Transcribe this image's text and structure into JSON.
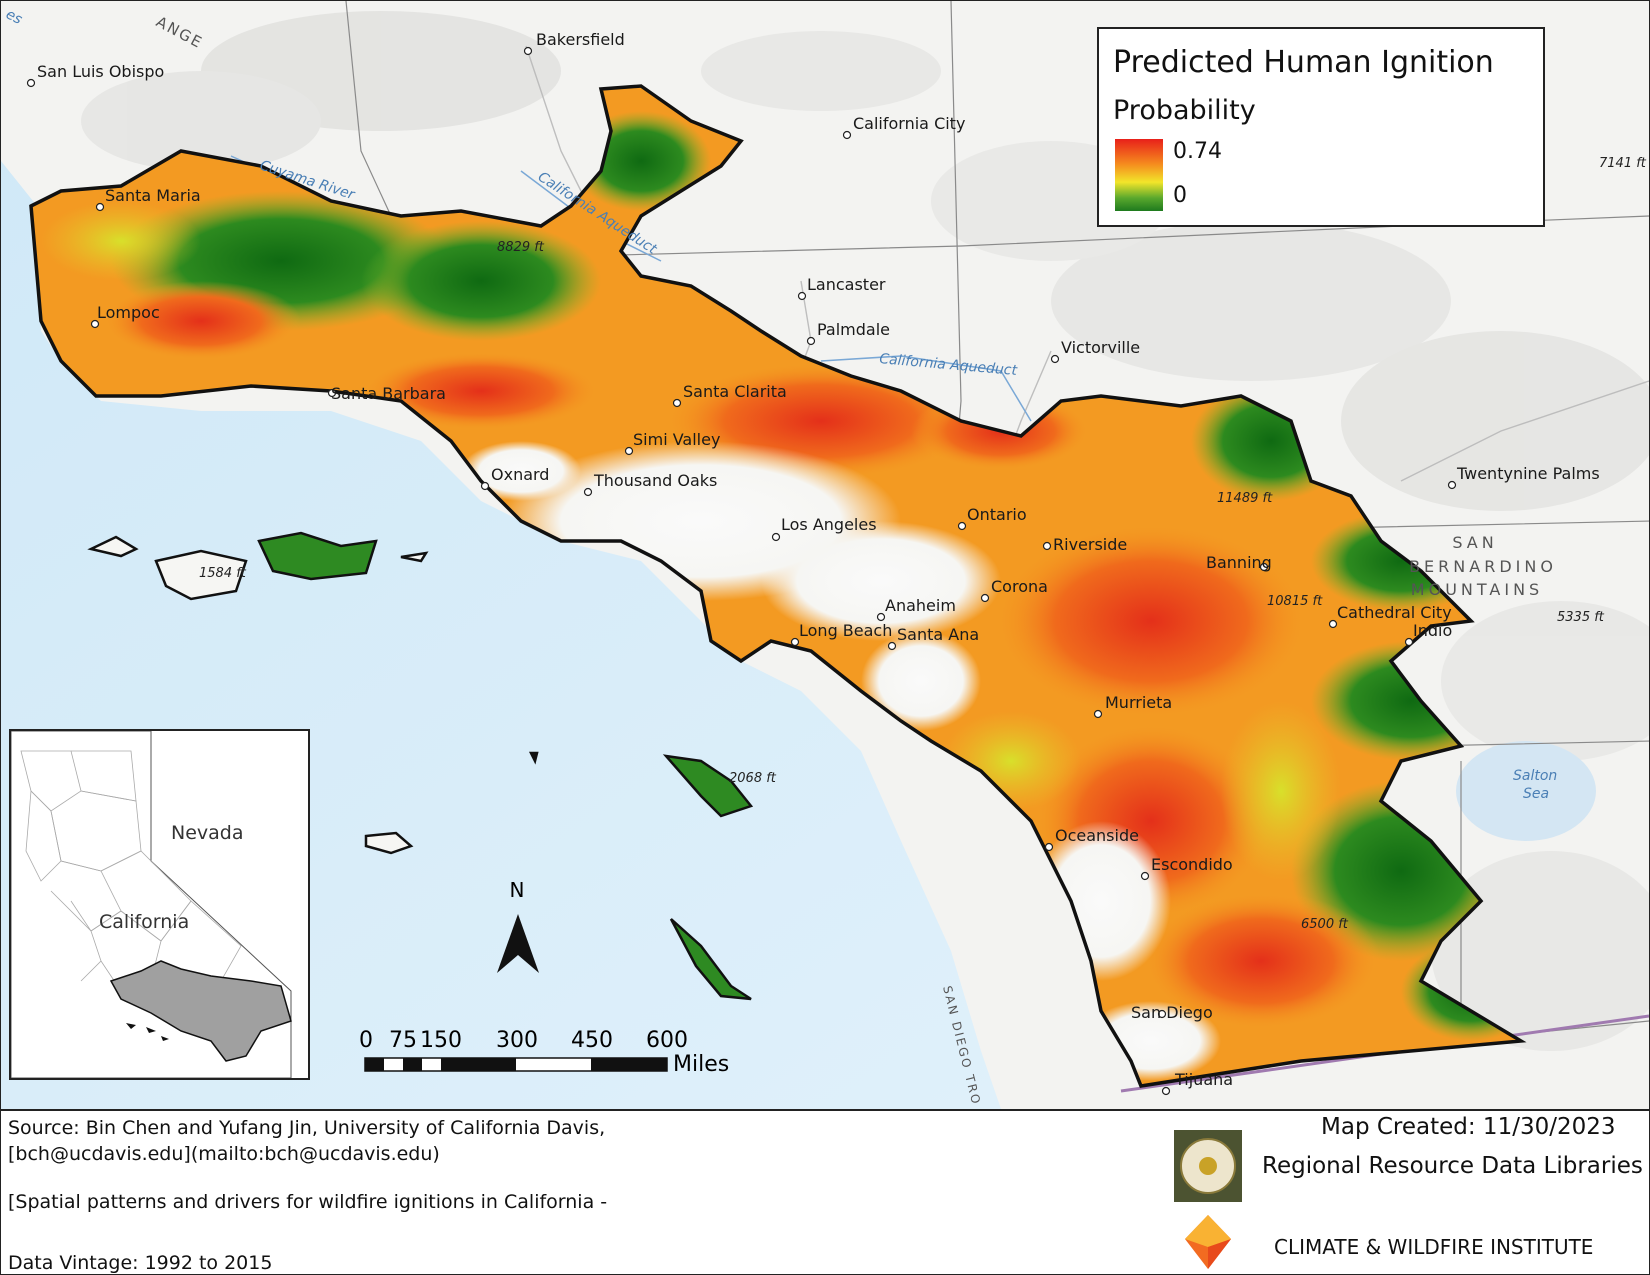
{
  "legend": {
    "title": "Predicted Human Ignition",
    "subtitle": "Probability",
    "max_label": "0.74",
    "min_label": "0",
    "ramp_colors": [
      "#e8201a",
      "#f58c1e",
      "#f2e52a",
      "#5aa82d",
      "#1e7a1e"
    ]
  },
  "cities": {
    "bakersfield": "Bakersfield",
    "san_luis_obispo": "San Luis Obispo",
    "california_city": "California City",
    "santa_maria": "Santa Maria",
    "lompoc": "Lompoc",
    "lancaster": "Lancaster",
    "palmdale": "Palmdale",
    "victorville": "Victorville",
    "santa_barbara": "Santa Barbara",
    "santa_clarita": "Santa Clarita",
    "simi_valley": "Simi Valley",
    "oxnard": "Oxnard",
    "thousand_oaks": "Thousand Oaks",
    "twentynine_palms": "Twentynine Palms",
    "los_angeles": "Los Angeles",
    "ontario": "Ontario",
    "riverside": "Riverside",
    "banning": "Banning",
    "corona": "Corona",
    "anaheim": "Anaheim",
    "long_beach": "Long Beach",
    "santa_ana": "Santa Ana",
    "cathedral_city": "Cathedral City",
    "indio": "Indio",
    "murrieta": "Murrieta",
    "oceanside": "Oceanside",
    "escondido": "Escondido",
    "san_diego": "San Diego",
    "tijuana": "Tijuana"
  },
  "peaks": {
    "p8829": "8829 ft",
    "p7141": "7141 ft",
    "p11489": "11489 ft",
    "p10815": "10815 ft",
    "p5335": "5335 ft",
    "p1584": "1584 ft",
    "p2068": "2068 ft",
    "p6500": "6500 ft"
  },
  "water": {
    "cuyama": "Cuyama River",
    "aqueduct1": "California Aqueduct",
    "aqueduct2": "California Aqueduct",
    "salton": "Salton",
    "salton2": "Sea",
    "trough": "SAN DIEGO TRO",
    "range": "ANGE",
    "edge": "es"
  },
  "range_label": {
    "line1": "SAN",
    "line2": "BERNARDINO",
    "line3": "MOUNTAINS"
  },
  "north_arrow": {
    "label": "N"
  },
  "scale_bar": {
    "ticks": [
      "0",
      "75",
      "150",
      "300",
      "450",
      "600"
    ],
    "unit": "Miles"
  },
  "inset": {
    "nevada": "Nevada",
    "california": "California"
  },
  "footer": {
    "source_line1": "Source:  Bin Chen and Yufang Jin, University of California Davis,",
    "source_line2": "[bch@ucdavis.edu](mailto:bch@ucdavis.edu)",
    "dataset": "[Spatial patterns and drivers for wildfire ignitions in California -",
    "vintage": "Data Vintage:  1992 to 2015",
    "map_created": "Map Created: 11/30/2023",
    "org1": "Regional Resource Data Libraries",
    "org2": "CLIMATE & WILDFIRE INSTITUTE"
  }
}
